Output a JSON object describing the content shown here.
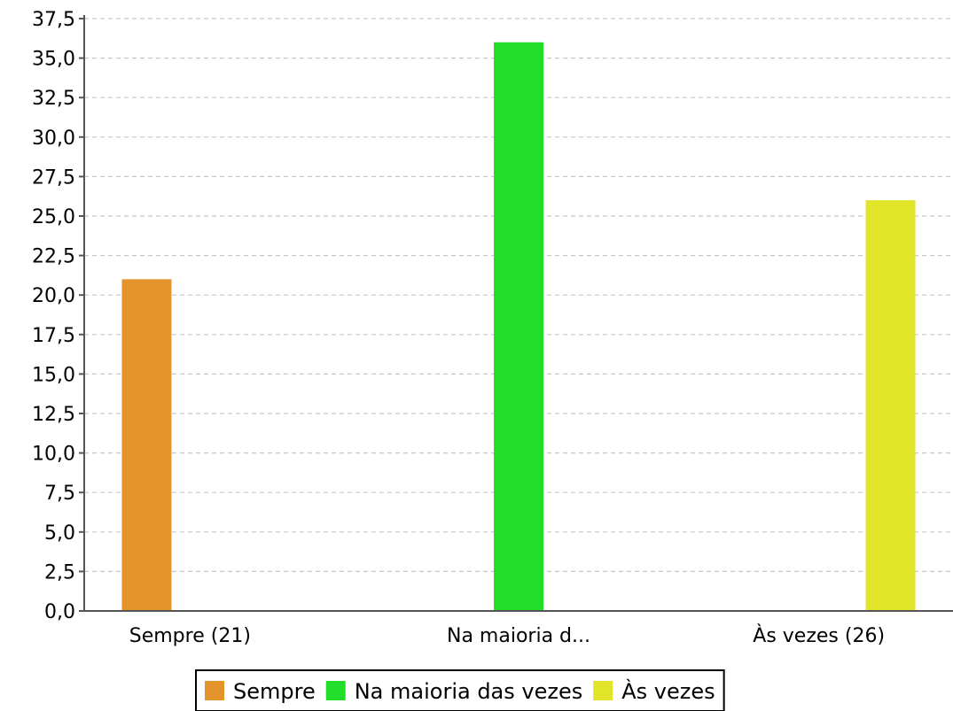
{
  "chart_data": {
    "type": "bar",
    "categories": [
      "Sempre (21)",
      "Na maioria d...",
      "Às vezes (26)"
    ],
    "series": [
      {
        "name": "Sempre",
        "color": "#e3932b",
        "category_index": 0,
        "value": 21
      },
      {
        "name": "Na maioria das vezes",
        "color": "#22dd2a",
        "category_index": 1,
        "value": 36
      },
      {
        "name": "Às vezes",
        "color": "#e2e42a",
        "category_index": 2,
        "value": 26
      }
    ],
    "values": [
      21,
      36,
      26
    ],
    "ylim": [
      0,
      37.5
    ],
    "yticks": [
      "0,0",
      "2,5",
      "5,0",
      "7,5",
      "10,0",
      "12,5",
      "15,0",
      "17,5",
      "20,0",
      "22,5",
      "25,0",
      "27,5",
      "30,0",
      "32,5",
      "35,0",
      "37,5"
    ],
    "grid": true,
    "legend_position": "bottom-center",
    "title": "",
    "xlabel": "",
    "ylabel": ""
  }
}
